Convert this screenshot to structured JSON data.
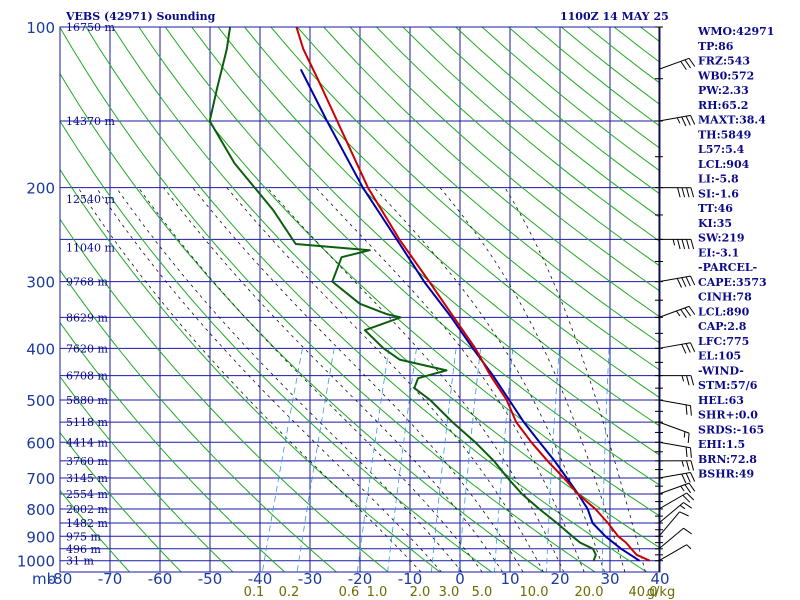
{
  "title": {
    "station": "VEBS (42971) Sounding",
    "time": "1100Z 14 MAY 25"
  },
  "indices": [
    "WMO:42971",
    "TP:86",
    "FRZ:543",
    "WB0:572",
    "PW:2.33",
    "RH:65.2",
    "MAXT:38.4",
    "TH:5849",
    "L57:5.4",
    "LCL:904",
    "LI:-5.8",
    "SI:-1.6",
    "TT:46",
    "KI:35",
    "SW:219",
    "EI:-3.1",
    "-PARCEL-",
    "CAPE:3573",
    "CINH:78",
    "LCL:890",
    "CAP:2.8",
    "LFC:775",
    "EL:105",
    "-WIND-",
    "STM:57/6",
    "HEL:63",
    "SHR+:0.0",
    "SRDS:-165",
    "EHI:1.5",
    "BRN:72.8",
    "BSHR:49"
  ],
  "colors": {
    "grid": "#1a1aa8",
    "dry_adiabat": "#22aa22",
    "moist_adiabat": "#111111",
    "mixing_ratio": "#3399dd",
    "temperature": "#cc0000",
    "dewpoint": "#0b5e0b",
    "parcel": "#0000aa",
    "wind_barb": "#000000"
  },
  "chart_data": {
    "type": "skew-t",
    "pressure_levels_mb": [
      100,
      200,
      300,
      400,
      500,
      600,
      700,
      800,
      900,
      1000
    ],
    "pressure_unit_label": "mb",
    "temperature_ticks_c": [
      -80,
      -70,
      -60,
      -50,
      -40,
      -30,
      -20,
      -10,
      0,
      10,
      20,
      30,
      40
    ],
    "mixing_ratio_labels": [
      "0.1",
      "0.2",
      "0.6",
      "1.0",
      "2.0",
      "3.0",
      "5.0",
      "10.0",
      "20.0",
      "40.0"
    ],
    "mixing_ratio_unit": "g/kg",
    "height_labels": [
      {
        "p": 100,
        "label": "16750 m"
      },
      {
        "p": 150,
        "label": "14370 m"
      },
      {
        "p": 210,
        "label": "12540 m"
      },
      {
        "p": 259,
        "label": "11040 m"
      },
      {
        "p": 300,
        "label": "9768 m"
      },
      {
        "p": 350,
        "label": "8629 m"
      },
      {
        "p": 400,
        "label": "7620 m"
      },
      {
        "p": 450,
        "label": "6708 m"
      },
      {
        "p": 500,
        "label": "5880 m"
      },
      {
        "p": 550,
        "label": "5118 m"
      },
      {
        "p": 600,
        "label": "4414 m"
      },
      {
        "p": 650,
        "label": "3760 m"
      },
      {
        "p": 700,
        "label": "3145 m"
      },
      {
        "p": 750,
        "label": "2554 m"
      },
      {
        "p": 800,
        "label": "2002 m"
      },
      {
        "p": 850,
        "label": "1482 m"
      },
      {
        "p": 900,
        "label": "975 m"
      },
      {
        "p": 950,
        "label": "496 m"
      },
      {
        "p": 1000,
        "label": "31 m"
      }
    ],
    "temperature_profile": [
      [
        1000,
        34
      ],
      [
        975,
        31
      ],
      [
        950,
        29.5
      ],
      [
        925,
        28
      ],
      [
        900,
        26
      ],
      [
        850,
        23
      ],
      [
        800,
        19.5
      ],
      [
        750,
        15
      ],
      [
        700,
        11
      ],
      [
        650,
        6.5
      ],
      [
        600,
        2
      ],
      [
        550,
        -2.5
      ],
      [
        500,
        -6
      ],
      [
        450,
        -11
      ],
      [
        400,
        -16
      ],
      [
        350,
        -22.5
      ],
      [
        300,
        -30
      ],
      [
        250,
        -39
      ],
      [
        200,
        -49
      ],
      [
        150,
        -60
      ],
      [
        125,
        -67
      ],
      [
        110,
        -72
      ],
      [
        100,
        -75
      ]
    ],
    "dewpoint_profile": [
      [
        1000,
        23
      ],
      [
        975,
        23
      ],
      [
        950,
        22
      ],
      [
        925,
        19
      ],
      [
        900,
        17
      ],
      [
        850,
        13
      ],
      [
        800,
        8.5
      ],
      [
        750,
        4
      ],
      [
        700,
        0
      ],
      [
        650,
        -4
      ],
      [
        600,
        -9
      ],
      [
        550,
        -15
      ],
      [
        500,
        -21
      ],
      [
        475,
        -25
      ],
      [
        455,
        -25
      ],
      [
        440,
        -20
      ],
      [
        420,
        -30
      ],
      [
        400,
        -34
      ],
      [
        370,
        -39
      ],
      [
        350,
        -33
      ],
      [
        345,
        -36
      ],
      [
        330,
        -42
      ],
      [
        300,
        -49
      ],
      [
        270,
        -49
      ],
      [
        262,
        -44
      ],
      [
        255,
        -59
      ],
      [
        220,
        -66
      ],
      [
        180,
        -77
      ],
      [
        150,
        -85
      ],
      [
        130,
        -86
      ],
      [
        110,
        -87
      ],
      [
        100,
        -88
      ]
    ],
    "parcel_profile": [
      [
        1000,
        32
      ],
      [
        950,
        27.5
      ],
      [
        900,
        23.5
      ],
      [
        850,
        20
      ],
      [
        800,
        18
      ],
      [
        750,
        15
      ],
      [
        700,
        11.6
      ],
      [
        650,
        7.9
      ],
      [
        600,
        3.6
      ],
      [
        550,
        -1
      ],
      [
        500,
        -5.5
      ],
      [
        450,
        -10.5
      ],
      [
        400,
        -16.5
      ],
      [
        350,
        -23
      ],
      [
        300,
        -31
      ],
      [
        250,
        -39.5
      ],
      [
        200,
        -50
      ],
      [
        150,
        -62
      ],
      [
        120,
        -71
      ]
    ],
    "wind_barbs": [
      {
        "p": 1000,
        "dir": 240,
        "kt": 5
      },
      {
        "p": 950,
        "dir": 230,
        "kt": 10
      },
      {
        "p": 900,
        "dir": 220,
        "kt": 10
      },
      {
        "p": 850,
        "dir": 230,
        "kt": 15
      },
      {
        "p": 800,
        "dir": 240,
        "kt": 20
      },
      {
        "p": 750,
        "dir": 250,
        "kt": 25
      },
      {
        "p": 700,
        "dir": 260,
        "kt": 30
      },
      {
        "p": 650,
        "dir": 270,
        "kt": 25
      },
      {
        "p": 600,
        "dir": 280,
        "kt": 20
      },
      {
        "p": 550,
        "dir": 290,
        "kt": 15
      },
      {
        "p": 500,
        "dir": 280,
        "kt": 20
      },
      {
        "p": 450,
        "dir": 270,
        "kt": 25
      },
      {
        "p": 400,
        "dir": 260,
        "kt": 30
      },
      {
        "p": 350,
        "dir": 250,
        "kt": 35
      },
      {
        "p": 300,
        "dir": 260,
        "kt": 40
      },
      {
        "p": 250,
        "dir": 270,
        "kt": 45
      },
      {
        "p": 200,
        "dir": 270,
        "kt": 40
      },
      {
        "p": 150,
        "dir": 260,
        "kt": 35
      },
      {
        "p": 120,
        "dir": 250,
        "kt": 30
      }
    ]
  }
}
